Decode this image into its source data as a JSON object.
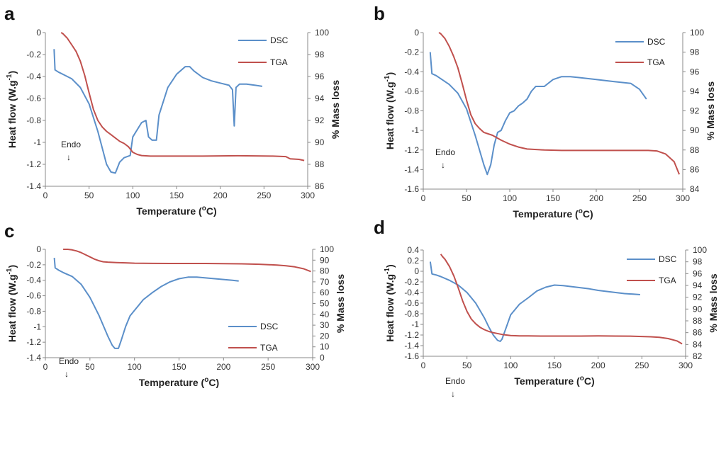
{
  "colors": {
    "dsc": "#5b8fc9",
    "tga": "#c0504d",
    "axis": "#888888"
  },
  "chart_data": [
    {
      "panel": "a",
      "type": "line",
      "xlabel": "Temperature (",
      "xlabel_sup": "o",
      "xlabel_end": "C)",
      "ylabel": "Heat flow (W.g",
      "ylabel_sup": "-1",
      "ylabel_end": ")",
      "y2label": "% Mass loss",
      "xlim": [
        0,
        300
      ],
      "xticks": [
        0,
        50,
        100,
        150,
        200,
        250,
        300
      ],
      "ylim": [
        -1.4,
        0
      ],
      "yticks": [
        -1.4,
        -1.2,
        -1,
        -0.8,
        -0.6,
        -0.4,
        -0.2,
        0
      ],
      "ytick_labels": [
        "-1.4",
        "-1.2",
        "-1",
        "-0.8",
        "-0.6",
        "-0.4",
        "-0.2",
        "0"
      ],
      "y2lim": [
        86,
        100
      ],
      "y2ticks": [
        86,
        88,
        90,
        92,
        94,
        96,
        98,
        100
      ],
      "legend": [
        {
          "label": "DSC",
          "key": "dsc"
        },
        {
          "label": "TGA",
          "key": "tga"
        }
      ],
      "annotation": "Endo",
      "annotation_arrow": "↓",
      "series": [
        {
          "name": "DSC",
          "axis": "left",
          "key": "dsc",
          "x": [
            10,
            11,
            15,
            20,
            30,
            40,
            50,
            60,
            70,
            75,
            80,
            85,
            90,
            97,
            100,
            110,
            115,
            118,
            122,
            127,
            130,
            140,
            150,
            160,
            165,
            170,
            180,
            190,
            200,
            210,
            214,
            216,
            218,
            222,
            230,
            240,
            248
          ],
          "y": [
            -0.15,
            -0.34,
            -0.36,
            -0.38,
            -0.42,
            -0.5,
            -0.65,
            -0.9,
            -1.2,
            -1.27,
            -1.28,
            -1.18,
            -1.14,
            -1.12,
            -0.95,
            -0.82,
            -0.8,
            -0.95,
            -0.98,
            -0.98,
            -0.75,
            -0.5,
            -0.38,
            -0.31,
            -0.31,
            -0.35,
            -0.41,
            -0.44,
            -0.46,
            -0.48,
            -0.52,
            -0.85,
            -0.5,
            -0.47,
            -0.47,
            -0.48,
            -0.49
          ]
        },
        {
          "name": "TGA",
          "axis": "right",
          "key": "tga",
          "x": [
            18,
            20,
            25,
            30,
            35,
            40,
            45,
            50,
            55,
            60,
            65,
            70,
            75,
            80,
            85,
            90,
            95,
            100,
            105,
            110,
            120,
            140,
            160,
            180,
            200,
            220,
            240,
            260,
            275,
            280,
            290,
            296
          ],
          "y": [
            100,
            99.9,
            99.5,
            98.9,
            98.3,
            97.4,
            96.1,
            94.5,
            93.0,
            92.0,
            91.4,
            91.0,
            90.7,
            90.4,
            90.1,
            89.9,
            89.6,
            89.1,
            88.9,
            88.8,
            88.75,
            88.75,
            88.75,
            88.75,
            88.77,
            88.78,
            88.77,
            88.75,
            88.7,
            88.5,
            88.45,
            88.35
          ]
        }
      ]
    },
    {
      "panel": "b",
      "type": "line",
      "xlabel": "Temperature (",
      "xlabel_sup": "o",
      "xlabel_end": "C)",
      "ylabel": "Heat flow (W.g",
      "ylabel_sup": "-1",
      "ylabel_end": ")",
      "y2label": "% Mass loss",
      "xlim": [
        0,
        300
      ],
      "xticks": [
        0,
        50,
        100,
        150,
        200,
        250,
        300
      ],
      "ylim": [
        -1.6,
        0
      ],
      "yticks": [
        -1.6,
        -1.4,
        -1.2,
        -1,
        -0.8,
        -0.6,
        -0.4,
        -0.2,
        0
      ],
      "ytick_labels": [
        "-1.6",
        "-1.4",
        "-1.2",
        "-1",
        "-0.8",
        "-0.6",
        "-0.4",
        "-0.2",
        "0"
      ],
      "y2lim": [
        84,
        100
      ],
      "y2ticks": [
        84,
        86,
        88,
        90,
        92,
        94,
        96,
        98,
        100
      ],
      "legend": [
        {
          "label": "DSC",
          "key": "dsc"
        },
        {
          "label": "TGA",
          "key": "tga"
        }
      ],
      "annotation": "Endo",
      "annotation_arrow": "↓",
      "series": [
        {
          "name": "DSC",
          "axis": "left",
          "key": "dsc",
          "x": [
            8,
            10,
            15,
            20,
            30,
            40,
            50,
            60,
            70,
            74,
            78,
            82,
            86,
            90,
            95,
            100,
            105,
            110,
            115,
            120,
            125,
            130,
            140,
            150,
            160,
            170,
            180,
            200,
            220,
            240,
            250,
            258
          ],
          "y": [
            -0.2,
            -0.42,
            -0.44,
            -0.47,
            -0.53,
            -0.62,
            -0.78,
            -1.05,
            -1.35,
            -1.45,
            -1.35,
            -1.15,
            -1.02,
            -1.0,
            -0.9,
            -0.82,
            -0.8,
            -0.75,
            -0.72,
            -0.68,
            -0.6,
            -0.55,
            -0.55,
            -0.48,
            -0.45,
            -0.45,
            -0.46,
            -0.48,
            -0.5,
            -0.52,
            -0.58,
            -0.68
          ]
        },
        {
          "name": "TGA",
          "axis": "right",
          "key": "tga",
          "x": [
            18,
            20,
            25,
            30,
            35,
            40,
            45,
            50,
            55,
            60,
            65,
            70,
            80,
            90,
            100,
            110,
            120,
            140,
            160,
            180,
            200,
            220,
            240,
            260,
            270,
            280,
            290,
            296
          ],
          "y": [
            100,
            99.9,
            99.4,
            98.6,
            97.6,
            96.4,
            94.8,
            93.1,
            91.6,
            90.7,
            90.2,
            89.8,
            89.5,
            89.0,
            88.6,
            88.3,
            88.1,
            88.0,
            87.95,
            87.95,
            87.95,
            87.95,
            87.95,
            87.95,
            87.9,
            87.6,
            86.8,
            85.5
          ]
        }
      ]
    },
    {
      "panel": "c",
      "type": "line",
      "xlabel": "Temperature (",
      "xlabel_sup": "o",
      "xlabel_end": "C)",
      "ylabel": "Heat flow (W.g",
      "ylabel_sup": "-1",
      "ylabel_end": ")",
      "y2label": "% Mass loss",
      "xlim": [
        0,
        300
      ],
      "xticks": [
        0,
        50,
        100,
        150,
        200,
        250,
        300
      ],
      "ylim": [
        -1.4,
        0
      ],
      "yticks": [
        -1.4,
        -1.2,
        -1,
        -0.8,
        -0.6,
        -0.4,
        -0.2,
        0
      ],
      "ytick_labels": [
        "-1.4",
        "-1.2",
        "-1",
        "-0.8",
        "-0.6",
        "-0.4",
        "-0.2",
        "0"
      ],
      "y2lim": [
        0,
        100
      ],
      "y2ticks": [
        0,
        10,
        20,
        30,
        40,
        50,
        60,
        70,
        80,
        90,
        100
      ],
      "legend": [
        {
          "label": "DSC",
          "key": "dsc"
        },
        {
          "label": "TGA",
          "key": "tga"
        }
      ],
      "annotation": "Endo",
      "annotation_arrow": "↓",
      "series": [
        {
          "name": "DSC",
          "axis": "left",
          "key": "dsc",
          "x": [
            10,
            11,
            15,
            20,
            30,
            40,
            50,
            60,
            70,
            75,
            78,
            82,
            85,
            90,
            95,
            100,
            110,
            120,
            130,
            140,
            150,
            160,
            170,
            180,
            190,
            200,
            210,
            217
          ],
          "y": [
            -0.11,
            -0.24,
            -0.27,
            -0.3,
            -0.35,
            -0.45,
            -0.62,
            -0.85,
            -1.12,
            -1.24,
            -1.28,
            -1.28,
            -1.18,
            -1.0,
            -0.86,
            -0.79,
            -0.65,
            -0.56,
            -0.48,
            -0.42,
            -0.38,
            -0.36,
            -0.36,
            -0.37,
            -0.38,
            -0.39,
            -0.4,
            -0.41
          ]
        },
        {
          "name": "TGA",
          "axis": "right",
          "key": "tga",
          "x": [
            20,
            25,
            30,
            35,
            40,
            45,
            50,
            55,
            60,
            65,
            70,
            80,
            90,
            100,
            120,
            140,
            160,
            180,
            200,
            220,
            240,
            260,
            270,
            280,
            290,
            298
          ],
          "y": [
            100,
            100,
            99.5,
            98.5,
            97,
            95,
            93,
            91,
            89.5,
            88.5,
            88.2,
            87.8,
            87.5,
            87.2,
            87.0,
            86.9,
            86.9,
            86.9,
            86.8,
            86.6,
            86.2,
            85.5,
            84.8,
            83.8,
            82.0,
            79.5
          ]
        }
      ]
    },
    {
      "panel": "d",
      "type": "line",
      "xlabel": "Temperature (",
      "xlabel_sup": "o",
      "xlabel_end": "C)",
      "ylabel": "Heat flow (W.g",
      "ylabel_sup": "-1",
      "ylabel_end": ")",
      "y2label": "% Mass loss",
      "xlim": [
        0,
        300
      ],
      "xticks": [
        0,
        50,
        100,
        150,
        200,
        250,
        300
      ],
      "ylim": [
        -1.6,
        0.4
      ],
      "yticks": [
        -1.6,
        -1.4,
        -1.2,
        -1,
        -0.8,
        -0.6,
        -0.4,
        -0.2,
        0,
        0.2,
        0.4
      ],
      "ytick_labels": [
        "-1.6",
        "-1.4",
        "-1.2",
        "-1",
        "-0.8",
        "-0.6",
        "-0.4",
        "-0.2",
        "0",
        "0.2",
        "0.4"
      ],
      "y2lim": [
        82,
        100
      ],
      "y2ticks": [
        82,
        84,
        86,
        88,
        90,
        92,
        94,
        96,
        98,
        100
      ],
      "legend": [
        {
          "label": "DSC",
          "key": "dsc"
        },
        {
          "label": "TGA",
          "key": "tga"
        }
      ],
      "annotation": "Endo",
      "annotation_arrow": "↓",
      "series": [
        {
          "name": "DSC",
          "axis": "left",
          "key": "dsc",
          "x": [
            8,
            10,
            15,
            20,
            30,
            40,
            50,
            60,
            70,
            75,
            80,
            85,
            88,
            90,
            95,
            100,
            110,
            120,
            130,
            140,
            150,
            160,
            170,
            180,
            190,
            200,
            210,
            220,
            230,
            240,
            248
          ],
          "y": [
            0.18,
            -0.05,
            -0.07,
            -0.1,
            -0.17,
            -0.26,
            -0.4,
            -0.6,
            -0.88,
            -1.05,
            -1.2,
            -1.3,
            -1.32,
            -1.28,
            -1.05,
            -0.82,
            -0.62,
            -0.5,
            -0.37,
            -0.3,
            -0.26,
            -0.27,
            -0.29,
            -0.31,
            -0.33,
            -0.36,
            -0.38,
            -0.4,
            -0.42,
            -0.43,
            -0.44
          ]
        },
        {
          "name": "TGA",
          "axis": "right",
          "key": "tga",
          "x": [
            20,
            22,
            25,
            30,
            35,
            40,
            45,
            50,
            55,
            60,
            65,
            70,
            75,
            80,
            90,
            100,
            110,
            120,
            140,
            160,
            180,
            200,
            220,
            240,
            260,
            270,
            280,
            290,
            296
          ],
          "y": [
            99.3,
            98.9,
            98.4,
            97.2,
            95.6,
            93.6,
            91.4,
            89.6,
            88.3,
            87.5,
            86.9,
            86.5,
            86.2,
            86.0,
            85.7,
            85.5,
            85.45,
            85.45,
            85.42,
            85.42,
            85.42,
            85.44,
            85.42,
            85.4,
            85.3,
            85.2,
            85.0,
            84.6,
            84.1
          ]
        }
      ]
    }
  ]
}
